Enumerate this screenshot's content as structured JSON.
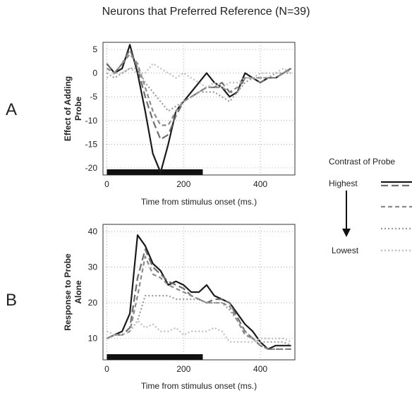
{
  "figure": {
    "title": "Neurons that Preferred Reference (N=39)",
    "panel_a_letter": "A",
    "panel_b_letter": "B"
  },
  "legend": {
    "title": "Contrast of Probe",
    "highest": "Highest",
    "lowest": "Lowest",
    "styles": [
      "solid-black",
      "long-dash",
      "short-dash",
      "dotted",
      "light-dotted"
    ]
  },
  "chart_data": [
    {
      "type": "line",
      "ylabel": "Effect of Adding Probe",
      "xlabel": "Time from stimulus onset (ms.)",
      "xlim": [
        -10,
        490
      ],
      "ylim": [
        -21.5,
        6.5
      ],
      "yticks": [
        5,
        0,
        -5,
        -10,
        -15,
        -20
      ],
      "xticks": [
        0,
        200,
        400
      ],
      "grid": true,
      "stimulus_bar": [
        0,
        250
      ],
      "x": [
        0,
        20,
        40,
        60,
        80,
        100,
        120,
        140,
        160,
        180,
        200,
        220,
        240,
        260,
        280,
        300,
        320,
        340,
        360,
        380,
        400,
        420,
        440,
        460,
        480
      ],
      "series": [
        {
          "style": "solid-black",
          "values": [
            2,
            0,
            1,
            6,
            0,
            -8,
            -17,
            -21,
            -15,
            -8,
            -6,
            -4,
            -2,
            0,
            -2,
            -3,
            -5,
            -4,
            0,
            -1,
            -2,
            -1,
            -1,
            0,
            1
          ]
        },
        {
          "style": "long-dash",
          "values": [
            2,
            0,
            2,
            5,
            1,
            -5,
            -10,
            -14,
            -13,
            -9,
            -6,
            -5,
            -4,
            -3,
            -3,
            -2,
            -4,
            -4,
            -1,
            -1,
            -2,
            -1,
            -1,
            0,
            1
          ]
        },
        {
          "style": "short-dash",
          "values": [
            1,
            0,
            2,
            4,
            2,
            -3,
            -8,
            -11,
            -11,
            -8,
            -6,
            -5,
            -4,
            -3,
            -3,
            -3,
            -4,
            -3,
            -1,
            -1,
            -1,
            -1,
            -1,
            0,
            1
          ]
        },
        {
          "style": "dotted",
          "values": [
            0,
            -1,
            0,
            1,
            1,
            -2,
            -4,
            -6,
            -8,
            -7,
            -6,
            -5,
            -4,
            -4,
            -4,
            -5,
            -6,
            -4,
            -2,
            -1,
            -1,
            -1,
            0,
            0,
            0
          ]
        },
        {
          "style": "light-dotted",
          "values": [
            -1,
            0,
            0,
            1,
            0,
            0,
            2,
            1,
            0,
            -1,
            0,
            -1,
            -2,
            -3,
            -2,
            -3,
            -2,
            -2,
            -1,
            -1,
            0,
            0,
            0,
            1,
            0
          ]
        }
      ]
    },
    {
      "type": "line",
      "ylabel": "Response to Probe Alone",
      "xlabel": "Time from stimulus onset (ms.)",
      "xlim": [
        -10,
        490
      ],
      "ylim": [
        4,
        42
      ],
      "yticks": [
        40,
        30,
        20,
        10
      ],
      "xticks": [
        0,
        200,
        400
      ],
      "grid": true,
      "stimulus_bar": [
        0,
        250
      ],
      "x": [
        0,
        20,
        40,
        60,
        80,
        100,
        120,
        140,
        160,
        180,
        200,
        220,
        240,
        260,
        280,
        300,
        320,
        340,
        360,
        380,
        400,
        420,
        440,
        460,
        480
      ],
      "series": [
        {
          "style": "solid-black",
          "values": [
            10,
            11,
            12,
            17,
            39,
            36,
            31,
            29,
            25,
            26,
            25,
            23,
            23,
            25,
            22,
            21,
            20,
            17,
            14,
            12,
            9,
            7,
            8,
            8,
            8
          ]
        },
        {
          "style": "long-dash",
          "values": [
            10,
            11,
            11,
            13,
            27,
            35,
            30,
            28,
            26,
            25,
            24,
            22,
            21,
            20,
            21,
            21,
            20,
            16,
            12,
            10,
            8,
            7,
            7,
            7,
            7
          ]
        },
        {
          "style": "short-dash",
          "values": [
            10,
            11,
            11,
            12,
            22,
            33,
            28,
            27,
            25,
            24,
            23,
            22,
            21,
            20,
            20,
            20,
            19,
            15,
            11,
            10,
            8,
            7,
            7,
            7,
            7
          ]
        },
        {
          "style": "dotted",
          "values": [
            10,
            11,
            11,
            12,
            15,
            22,
            22,
            22,
            22,
            21,
            21,
            21,
            21,
            20,
            20,
            20,
            18,
            15,
            12,
            10,
            9,
            9,
            9,
            9,
            8
          ]
        },
        {
          "style": "light-dotted",
          "values": [
            12,
            11,
            11,
            12,
            15,
            13,
            14,
            12,
            12,
            13,
            11,
            12,
            12,
            12,
            13,
            12,
            9,
            9,
            9,
            9,
            10,
            10,
            10,
            10,
            9
          ]
        }
      ]
    }
  ]
}
